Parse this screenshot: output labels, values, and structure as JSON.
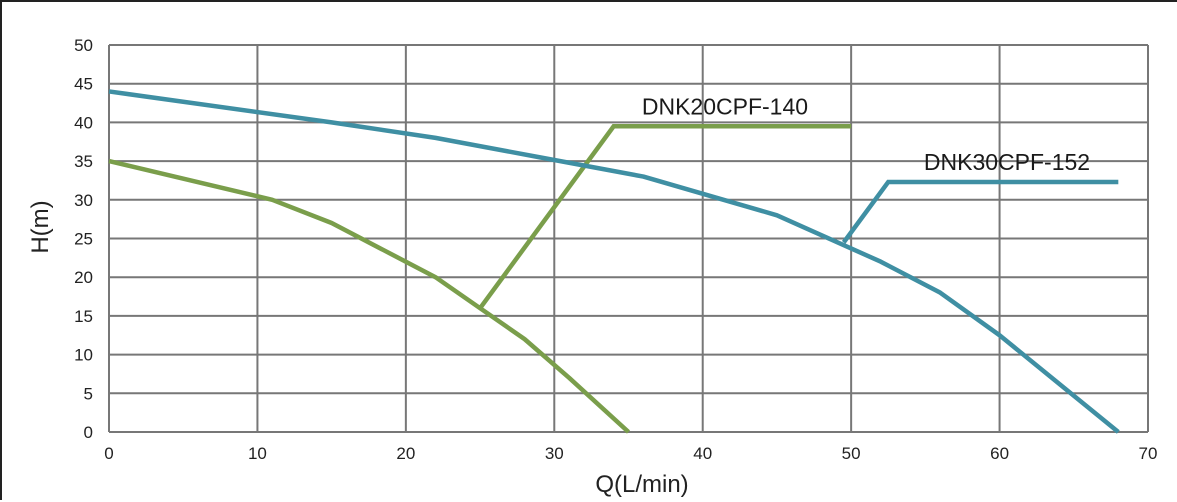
{
  "chart_data": {
    "type": "line",
    "title": "",
    "xlabel": "Q(L/min)",
    "ylabel": "H(m)",
    "xlim": [
      0,
      70
    ],
    "ylim": [
      0,
      50
    ],
    "xticks": [
      0,
      10,
      20,
      30,
      40,
      50,
      60,
      70
    ],
    "yticks": [
      0,
      5,
      10,
      15,
      20,
      25,
      30,
      35,
      40,
      45,
      50
    ],
    "grid": true,
    "colors": {
      "green": "#7a9e4b",
      "teal": "#3f8fa3",
      "grid": "#777777"
    },
    "series": [
      {
        "name": "DNK20CPF-140",
        "color": "#7a9e4b",
        "points": [
          [
            0,
            35
          ],
          [
            11,
            30
          ],
          [
            15,
            27
          ],
          [
            22,
            20
          ],
          [
            25,
            16
          ],
          [
            28,
            12
          ],
          [
            31,
            7
          ],
          [
            35,
            0
          ]
        ]
      },
      {
        "name": "DNK30CPF-152",
        "color": "#3f8fa3",
        "points": [
          [
            0,
            44
          ],
          [
            15,
            40
          ],
          [
            22,
            38
          ],
          [
            29,
            35.5
          ],
          [
            36,
            33
          ],
          [
            45,
            28
          ],
          [
            52,
            22
          ],
          [
            56,
            18
          ],
          [
            60,
            12.5
          ],
          [
            68,
            0
          ]
        ]
      }
    ],
    "callouts": [
      {
        "series": 0,
        "points": [
          [
            25,
            16
          ],
          [
            34,
            39.5
          ],
          [
            50,
            39.5
          ]
        ]
      },
      {
        "series": 1,
        "points": [
          [
            49.5,
            24.5
          ],
          [
            52.5,
            32.3
          ],
          [
            68,
            32.3
          ]
        ]
      }
    ]
  }
}
